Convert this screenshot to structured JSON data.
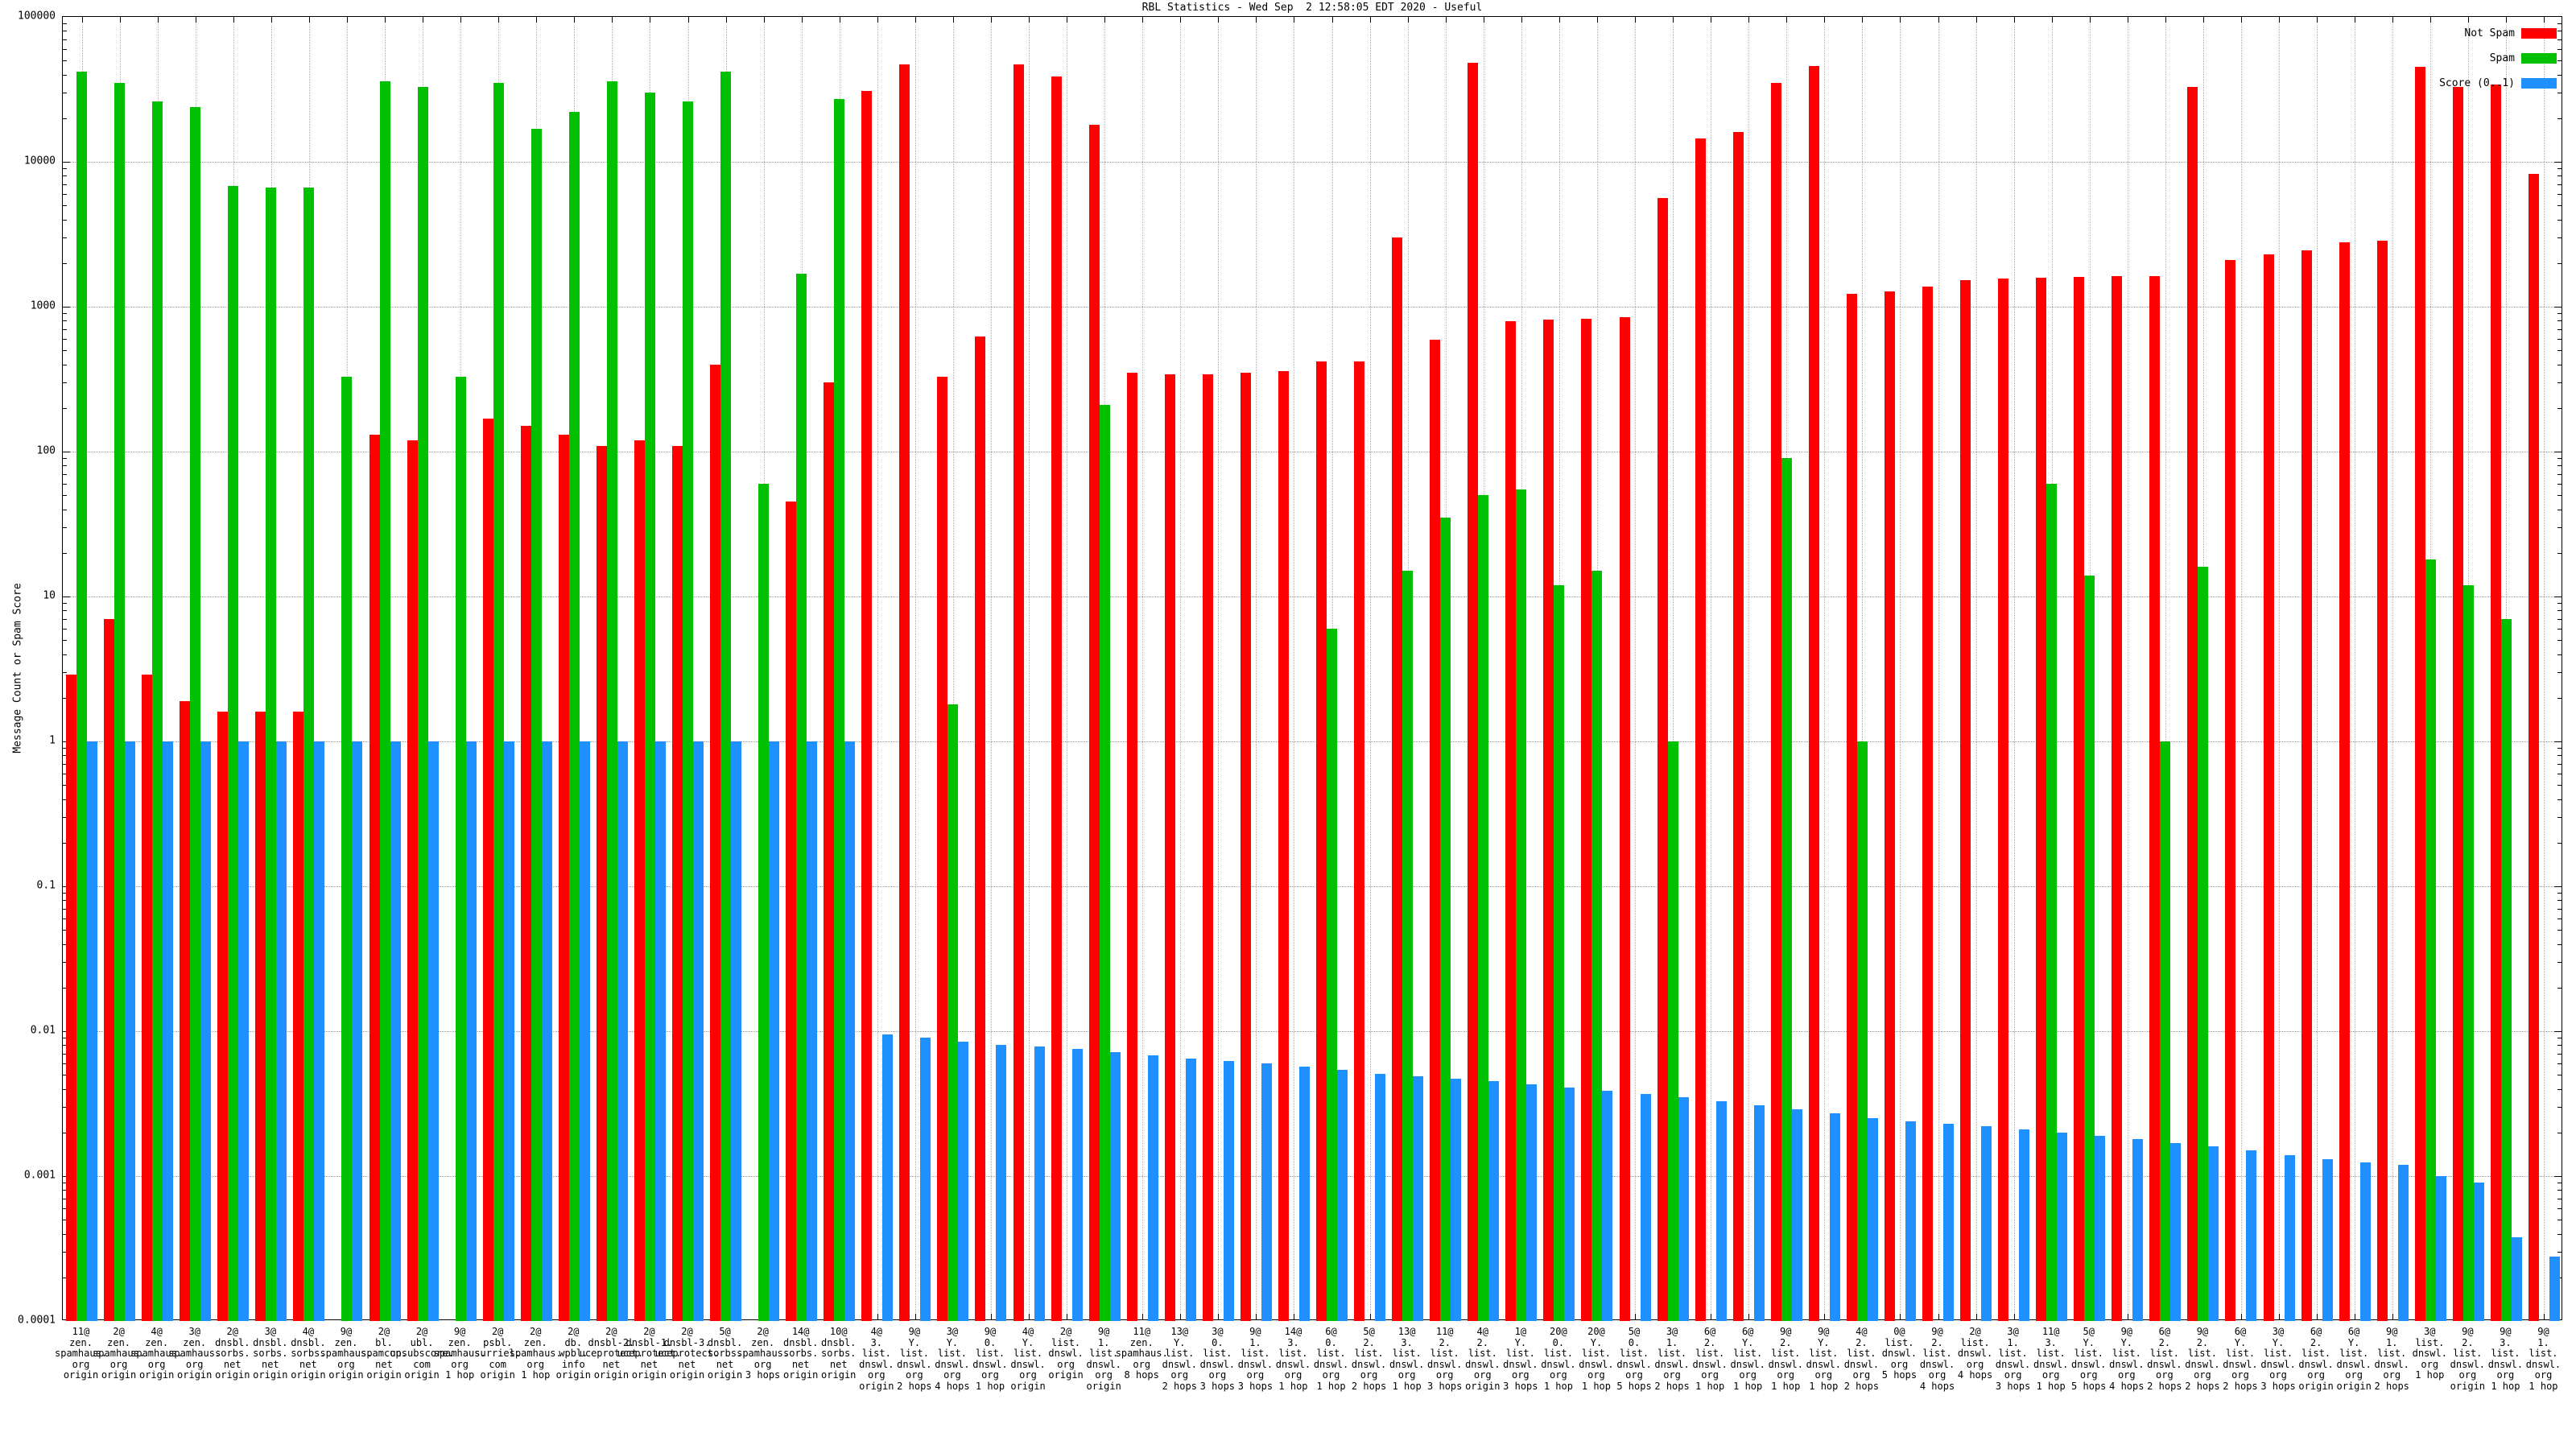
{
  "title": "RBL Statistics - Wed Sep  2 12:58:05 EDT 2020 - Useful",
  "legend": [
    {
      "label": "Not Spam",
      "color": "#ff0000"
    },
    {
      "label": "Spam",
      "color": "#00c000"
    },
    {
      "label": "Score (0..1)",
      "color": "#1e90ff"
    }
  ],
  "chart_data": {
    "type": "bar",
    "title": "RBL Statistics - Wed Sep  2 12:58:05 EDT 2020 - Useful",
    "xlabel": "",
    "ylabel": "Message Count or Spam Score",
    "log_y": true,
    "ylim": [
      0.0001,
      100000
    ],
    "grid": true,
    "legend_position": "top-right",
    "y_ticks": [
      {
        "value": 100000,
        "label": "100000"
      },
      {
        "value": 10000,
        "label": "10000"
      },
      {
        "value": 1000,
        "label": "1000"
      },
      {
        "value": 100,
        "label": "100"
      },
      {
        "value": 10,
        "label": "10"
      },
      {
        "value": 1,
        "label": "1"
      },
      {
        "value": 0.1,
        "label": "0.1"
      },
      {
        "value": 0.01,
        "label": "0.01"
      },
      {
        "value": 0.001,
        "label": "0.001"
      },
      {
        "value": 0.0001,
        "label": "0.0001"
      }
    ],
    "categories": [
      "11@ zen.spamhaus.org origin",
      "2@ zen.spamhaus.org origin",
      "4@ zen.spamhaus.org origin",
      "3@ zen.spamhaus.org origin",
      "2@ dnsbl.sorbs.net origin",
      "3@ dnsbl.sorbs.net origin",
      "4@ dnsbl.sorbs.net origin",
      "9@ zen.spamhaus.org origin",
      "2@ bl.spamcop.net origin",
      "2@ ubl.unsubscore.com origin",
      "9@ zen.spamhaus.org 1 hop",
      "2@ psbl.surriel.com origin",
      "2@ zen.spamhaus.org 1 hop",
      "2@ db.wpbl.info origin",
      "2@ dnsbl-2.uceprotect.net origin",
      "2@ dnsbl-1.uceprotect.net origin",
      "2@ dnsbl-3.uceprotect.net origin",
      "5@ dnsbl.sorbs.net origin",
      "2@ zen.spamhaus.org 3 hops",
      "14@ dnsbl.sorbs.net origin",
      "10@ dnsbl.sorbs.net origin",
      "4@ 3.list.dnswl.org origin",
      "9@ Y.list.dnswl.org 2 hops",
      "3@ Y.list.dnswl.org 4 hops",
      "9@ 0.list.dnswl.org 1 hop",
      "4@ Y.list.dnswl.org origin",
      "2@ list.dnswl.org origin",
      "9@ 1.list.dnswl.org origin",
      "11@ zen.spamhaus.org 8 hops",
      "13@ Y.list.dnswl.org 2 hops",
      "3@ 0.list.dnswl.org 3 hops",
      "9@ 1.list.dnswl.org 3 hops",
      "14@ 3.list.dnswl.org 1 hop",
      "6@ 0.list.dnswl.org 1 hop",
      "5@ 2.list.dnswl.org 2 hops",
      "13@ 3.list.dnswl.org 1 hop",
      "11@ 2.list.dnswl.org 3 hops",
      "4@ 2.list.dnswl.org origin",
      "1@ Y.list.dnswl.org 3 hops",
      "20@ 0.list.dnswl.org 1 hop",
      "20@ Y.list.dnswl.org 1 hop",
      "5@ 0.list.dnswl.org 5 hops",
      "3@ 1.list.dnswl.org 2 hops",
      "6@ 2.list.dnswl.org 1 hop",
      "6@ Y.list.dnswl.org 1 hop",
      "9@ 2.list.dnswl.org 1 hop",
      "9@ Y.list.dnswl.org 1 hop",
      "4@ 2.list.dnswl.org 2 hops",
      "0@ list.dnswl.org 5 hops",
      "9@ 2.list.dnswl.org 4 hops",
      "2@ list.dnswl.org 4 hops",
      "3@ 1.list.dnswl.org 3 hops",
      "11@ 3.list.dnswl.org 1 hop",
      "5@ Y.list.dnswl.org 5 hops",
      "9@ Y.list.dnswl.org 4 hops",
      "6@ 2.list.dnswl.org 2 hops",
      "9@ 2.list.dnswl.org 2 hops",
      "6@ Y.list.dnswl.org 2 hops",
      "3@ Y.list.dnswl.org 3 hops",
      "6@ 2.list.dnswl.org origin",
      "6@ Y.list.dnswl.org origin",
      "9@ 1.list.dnswl.org 2 hops",
      "3@ list.dnswl.org 1 hop",
      "9@ 2.list.dnswl.org origin",
      "9@ 3.list.dnswl.org 1 hop",
      "9@ 1.list.dnswl.org 1 hop"
    ],
    "series": [
      {
        "name": "Not Spam",
        "color": "#ff0000",
        "values": [
          2.9,
          7,
          2.9,
          1.9,
          1.6,
          1.6,
          1.6,
          null,
          130,
          120,
          null,
          170,
          150,
          130,
          110,
          120,
          110,
          400,
          null,
          45,
          300,
          31000,
          47000,
          330,
          620,
          47000,
          39000,
          18000,
          350,
          340,
          340,
          350,
          360,
          420,
          420,
          3000,
          590,
          48000,
          790,
          820,
          830,
          850,
          5600,
          14500,
          16000,
          35000,
          46000,
          1230,
          1280,
          1380,
          1520,
          1560,
          1580,
          1600,
          1620,
          1630,
          33000,
          2100,
          2300,
          2450,
          2800,
          2850,
          45000,
          33000,
          34000,
          8300
        ]
      },
      {
        "name": "Spam",
        "color": "#00c000",
        "values": [
          42000,
          35000,
          26000,
          24000,
          6800,
          6600,
          6600,
          330,
          36000,
          33000,
          330,
          35000,
          17000,
          22000,
          36000,
          30000,
          26000,
          42000,
          60,
          1700,
          27000,
          null,
          null,
          1.8,
          null,
          null,
          null,
          210,
          null,
          null,
          null,
          null,
          null,
          6,
          null,
          15,
          35,
          50,
          55,
          12,
          15,
          null,
          1,
          null,
          null,
          90,
          null,
          1,
          null,
          null,
          null,
          null,
          60,
          14,
          null,
          1,
          16,
          null,
          null,
          null,
          null,
          null,
          18,
          12,
          7,
          null
        ]
      },
      {
        "name": "Score (0..1)",
        "color": "#1e90ff",
        "values": [
          1,
          1,
          1,
          1,
          1,
          1,
          1,
          1,
          1,
          1,
          1,
          1,
          1,
          1,
          1,
          1,
          1,
          1,
          1,
          1,
          1,
          0.0095,
          0.009,
          0.0085,
          0.008,
          0.0078,
          0.0075,
          0.0072,
          0.0068,
          0.0065,
          0.0062,
          0.006,
          0.0057,
          0.0054,
          0.0051,
          0.0049,
          0.0047,
          0.0045,
          0.0043,
          0.0041,
          0.0039,
          0.0037,
          0.0035,
          0.0033,
          0.0031,
          0.0029,
          0.0027,
          0.0025,
          0.0024,
          0.0023,
          0.0022,
          0.0021,
          0.002,
          0.0019,
          0.0018,
          0.0017,
          0.0016,
          0.0015,
          0.0014,
          0.0013,
          0.00125,
          0.0012,
          0.001,
          0.0009,
          0.00038,
          0.00028
        ]
      }
    ]
  }
}
